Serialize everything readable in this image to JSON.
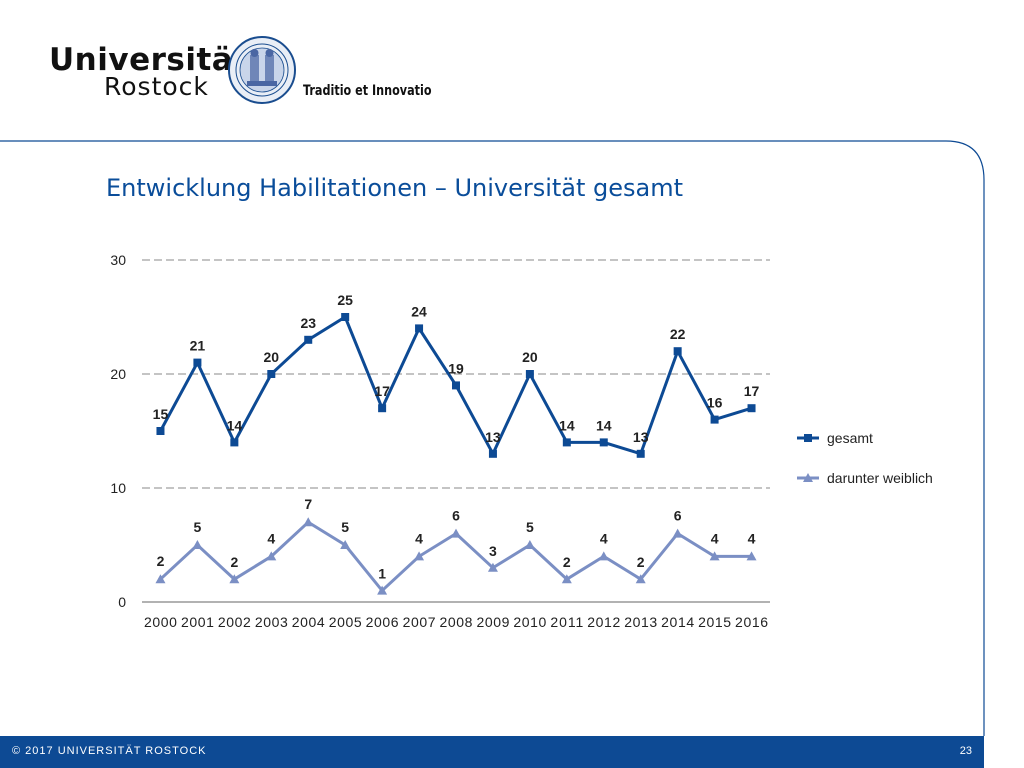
{
  "header": {
    "logo_line1": "Universität",
    "logo_line2": "Rostock",
    "motto": "Traditio et Innovatio",
    "seal_icon": "university-seal-icon"
  },
  "slide": {
    "title": "Entwicklung Habilitationen – Universität gesamt"
  },
  "footer": {
    "copyright": "© 2017 UNIVERSITÄT ROSTOCK",
    "page_number": "23"
  },
  "colors": {
    "accent": "#0a4d9a",
    "series_gesamt": "#0d4a94",
    "series_weiblich": "#7b8fc4",
    "footer_bg": "#0d4a94"
  },
  "chart_data": {
    "type": "line",
    "title": "",
    "xlabel": "",
    "ylabel": "",
    "categories": [
      "2000",
      "2001",
      "2002",
      "2003",
      "2004",
      "2005",
      "2006",
      "2007",
      "2008",
      "2009",
      "2010",
      "2011",
      "2012",
      "2013",
      "2014",
      "2015",
      "2016"
    ],
    "yticks": [
      0,
      10,
      20,
      30
    ],
    "ylim": [
      0,
      30
    ],
    "grid": "dashed horizontal at 10, 20, 30",
    "legend_position": "right",
    "series": [
      {
        "name": "gesamt",
        "marker": "square",
        "values": [
          15,
          21,
          14,
          20,
          23,
          25,
          17,
          24,
          19,
          13,
          20,
          14,
          14,
          13,
          22,
          16,
          17
        ]
      },
      {
        "name": "darunter weiblich",
        "marker": "triangle",
        "values": [
          2,
          5,
          2,
          4,
          7,
          5,
          1,
          4,
          6,
          3,
          5,
          2,
          4,
          2,
          6,
          4,
          4
        ]
      }
    ]
  }
}
